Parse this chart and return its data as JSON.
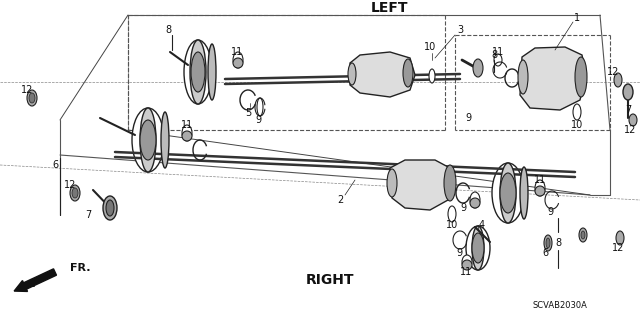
{
  "bg_color": "#ffffff",
  "fig_width": 6.4,
  "fig_height": 3.19,
  "title_left": "LEFT",
  "title_right": "RIGHT",
  "label_fr": "FR.",
  "label_code": "SCVAB2030A",
  "line_color": "#222222",
  "gray_fill": "#aaaaaa",
  "dark_fill": "#555555",
  "light_fill": "#dddddd"
}
